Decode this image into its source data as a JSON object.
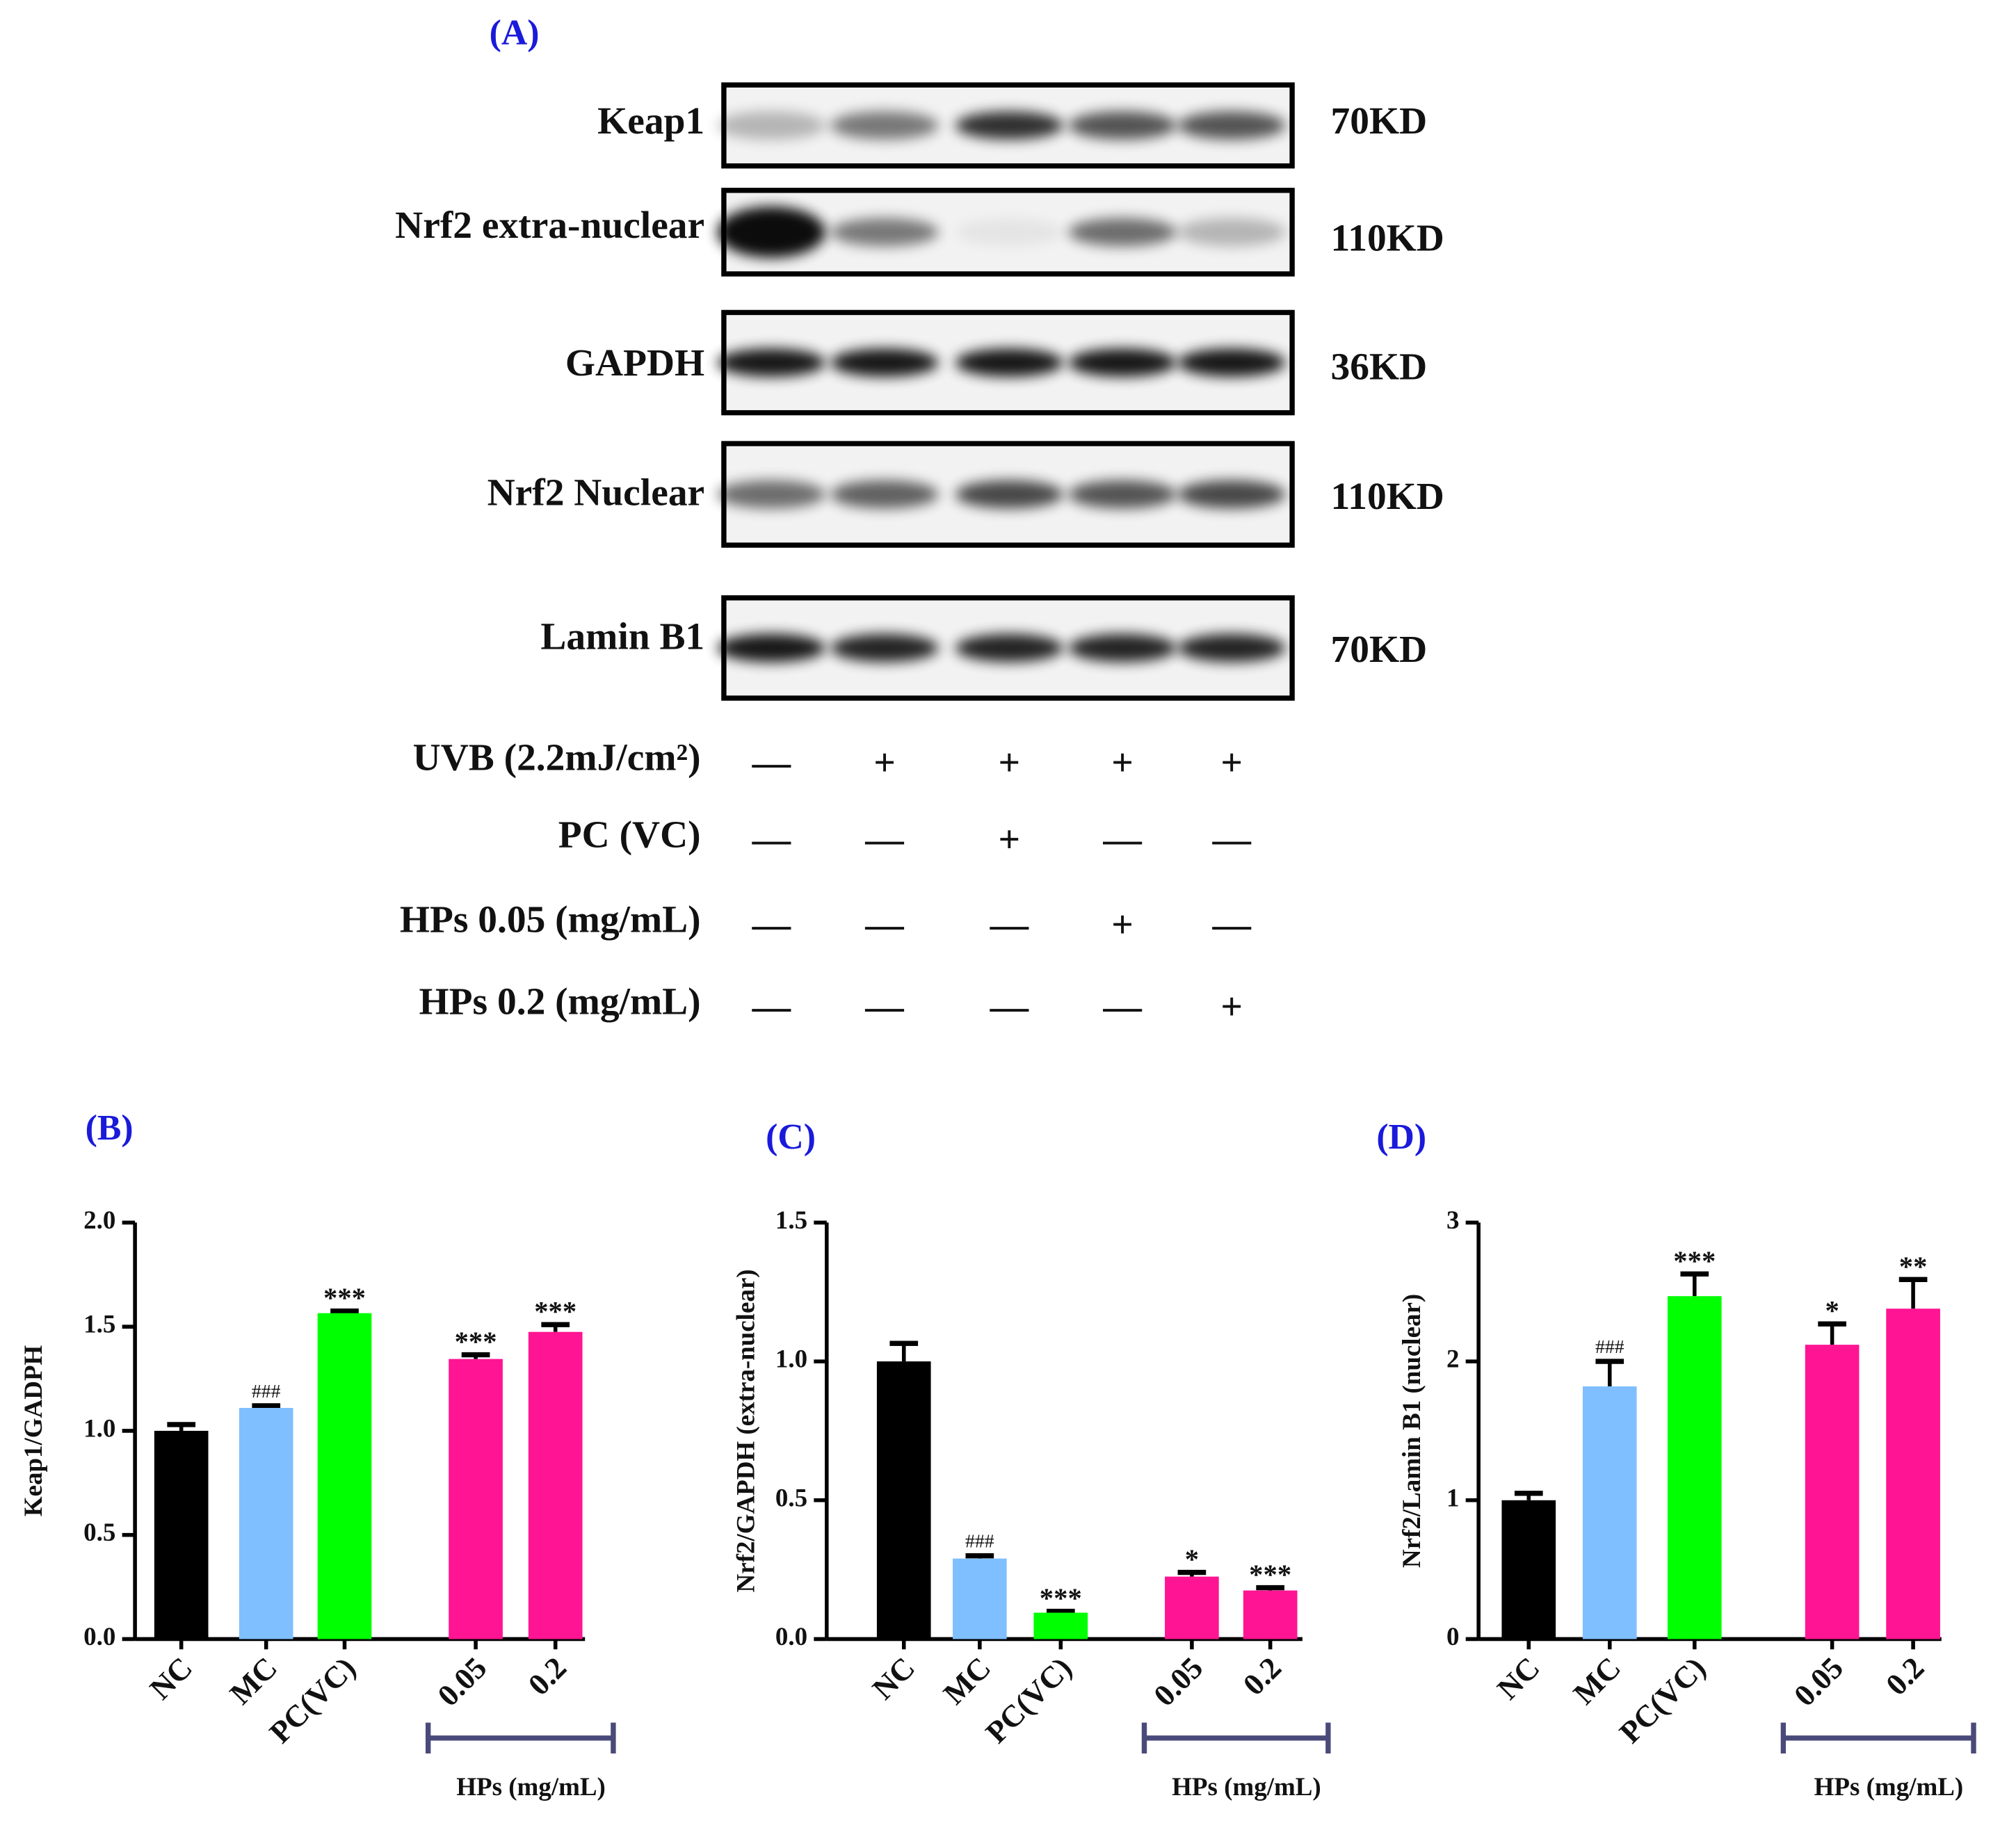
{
  "blot": {
    "title": "(A)",
    "rows": [
      {
        "label": "Keap1",
        "size": "70KD"
      },
      {
        "label": "Nrf2 extra-nuclear",
        "size": "110KD"
      },
      {
        "label": "GAPDH",
        "size": "36KD"
      },
      {
        "label": "Nrf2 Nuclear",
        "size": "110KD"
      },
      {
        "label": "Lamin B1",
        "size": "70KD"
      }
    ],
    "treatments": [
      {
        "label": "UVB (2.2mJ/cm²)",
        "signs": [
          "—",
          "+",
          "+",
          "+",
          "+"
        ]
      },
      {
        "label": "PC (VC)",
        "signs": [
          "—",
          "—",
          "+",
          "—",
          "—"
        ]
      },
      {
        "label": "HPs 0.05 (mg/mL)",
        "signs": [
          "—",
          "—",
          "—",
          "+",
          "—"
        ]
      },
      {
        "label": "HPs 0.2 (mg/mL)",
        "signs": [
          "—",
          "—",
          "—",
          "—",
          "+"
        ]
      }
    ]
  },
  "chart_data": [
    {
      "type": "bar",
      "title": "(B)",
      "y_label": "Keap1/GADPH",
      "group_label": "HPs (mg/mL)",
      "categories": [
        "NC",
        "MC",
        "PC(VC)",
        "0.05",
        "0.2"
      ],
      "values": [
        1.0,
        1.11,
        1.565,
        1.345,
        1.475
      ],
      "errors": [
        0.03,
        0.01,
        0.01,
        0.02,
        0.035
      ],
      "annotations": [
        null,
        "###",
        "***",
        "***",
        "***"
      ],
      "colors": [
        "#000000",
        "#7fbfff",
        "#00ff00",
        "#ff1493",
        "#ff1493"
      ],
      "ylim": [
        0,
        2
      ],
      "yticks": [
        {
          "value": 0,
          "label": "0.0"
        },
        {
          "value": 0.5,
          "label": "0.5"
        },
        {
          "value": 1,
          "label": "1.0"
        },
        {
          "value": 1.5,
          "label": "1.5"
        },
        {
          "value": 2,
          "label": "2.0"
        }
      ]
    },
    {
      "type": "bar",
      "title": "(C)",
      "y_label": "Nrf2/GAPDH (extra-nuclear)",
      "group_label": "HPs (mg/mL)",
      "categories": [
        "NC",
        "MC",
        "PC(VC)",
        "0.05",
        "0.2"
      ],
      "values": [
        1.0,
        0.29,
        0.095,
        0.225,
        0.175
      ],
      "errors": [
        0.065,
        0.01,
        0.005,
        0.015,
        0.01
      ],
      "annotations": [
        null,
        "###",
        "***",
        "*",
        "***"
      ],
      "colors": [
        "#000000",
        "#7fbfff",
        "#00ff00",
        "#ff1493",
        "#ff1493"
      ],
      "ylim": [
        0,
        1.5
      ],
      "yticks": [
        {
          "value": 0,
          "label": "0.0"
        },
        {
          "value": 0.5,
          "label": "0.5"
        },
        {
          "value": 1,
          "label": "1.0"
        },
        {
          "value": 1.5,
          "label": "1.5"
        }
      ]
    },
    {
      "type": "bar",
      "title": "(D)",
      "y_label": "Nrf2/Lamin B1 (nuclear)",
      "group_label": "HPs (mg/mL)",
      "categories": [
        "NC",
        "MC",
        "PC(VC)",
        "0.05",
        "0.2"
      ],
      "values": [
        1.0,
        1.82,
        2.47,
        2.12,
        2.38
      ],
      "errors": [
        0.05,
        0.18,
        0.16,
        0.15,
        0.21
      ],
      "annotations": [
        null,
        "###",
        "***",
        "*",
        "**"
      ],
      "colors": [
        "#000000",
        "#7fbfff",
        "#00ff00",
        "#ff1493",
        "#ff1493"
      ],
      "ylim": [
        0,
        3
      ],
      "yticks": [
        0,
        1,
        2,
        3
      ]
    }
  ]
}
